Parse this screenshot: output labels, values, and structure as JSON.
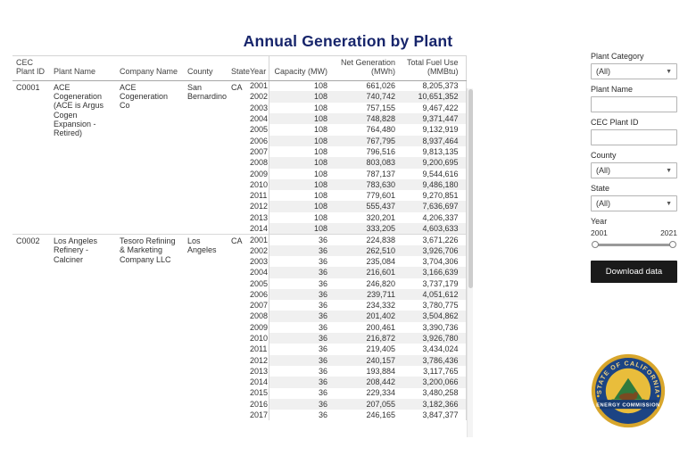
{
  "title": "Annual Generation by Plant",
  "table": {
    "headers": [
      "CEC Plant ID",
      "Plant Name",
      "Company Name",
      "County",
      "State",
      "Year",
      "Capacity (MW)",
      "Net Generation (MWh)",
      "Total Fuel Use (MMBtu)"
    ],
    "groups": [
      {
        "plant_id": "C0001",
        "plant_name": "ACE Cogeneration (ACE is Argus Cogen Expansion - Retired)",
        "company_name": "ACE Cogeneration Co",
        "county": "San Bernardino",
        "state": "CA",
        "rows": [
          {
            "year": "2001",
            "capacity": "108",
            "net_generation": "661,026",
            "total_fuel_use": "8,205,373"
          },
          {
            "year": "2002",
            "capacity": "108",
            "net_generation": "740,742",
            "total_fuel_use": "10,651,352"
          },
          {
            "year": "2003",
            "capacity": "108",
            "net_generation": "757,155",
            "total_fuel_use": "9,467,422"
          },
          {
            "year": "2004",
            "capacity": "108",
            "net_generation": "748,828",
            "total_fuel_use": "9,371,447"
          },
          {
            "year": "2005",
            "capacity": "108",
            "net_generation": "764,480",
            "total_fuel_use": "9,132,919"
          },
          {
            "year": "2006",
            "capacity": "108",
            "net_generation": "767,795",
            "total_fuel_use": "8,937,464"
          },
          {
            "year": "2007",
            "capacity": "108",
            "net_generation": "796,516",
            "total_fuel_use": "9,813,135"
          },
          {
            "year": "2008",
            "capacity": "108",
            "net_generation": "803,083",
            "total_fuel_use": "9,200,695"
          },
          {
            "year": "2009",
            "capacity": "108",
            "net_generation": "787,137",
            "total_fuel_use": "9,544,616"
          },
          {
            "year": "2010",
            "capacity": "108",
            "net_generation": "783,630",
            "total_fuel_use": "9,486,180"
          },
          {
            "year": "2011",
            "capacity": "108",
            "net_generation": "779,601",
            "total_fuel_use": "9,270,851"
          },
          {
            "year": "2012",
            "capacity": "108",
            "net_generation": "555,437",
            "total_fuel_use": "7,636,697"
          },
          {
            "year": "2013",
            "capacity": "108",
            "net_generation": "320,201",
            "total_fuel_use": "4,206,337"
          },
          {
            "year": "2014",
            "capacity": "108",
            "net_generation": "333,205",
            "total_fuel_use": "4,603,633"
          }
        ]
      },
      {
        "plant_id": "C0002",
        "plant_name": "Los Angeles Refinery - Calciner",
        "company_name": "Tesoro Refining & Marketing Company LLC",
        "county": "Los Angeles",
        "state": "CA",
        "rows": [
          {
            "year": "2001",
            "capacity": "36",
            "net_generation": "224,838",
            "total_fuel_use": "3,671,226"
          },
          {
            "year": "2002",
            "capacity": "36",
            "net_generation": "262,510",
            "total_fuel_use": "3,926,706"
          },
          {
            "year": "2003",
            "capacity": "36",
            "net_generation": "235,084",
            "total_fuel_use": "3,704,306"
          },
          {
            "year": "2004",
            "capacity": "36",
            "net_generation": "216,601",
            "total_fuel_use": "3,166,639"
          },
          {
            "year": "2005",
            "capacity": "36",
            "net_generation": "246,820",
            "total_fuel_use": "3,737,179"
          },
          {
            "year": "2006",
            "capacity": "36",
            "net_generation": "239,711",
            "total_fuel_use": "4,051,612"
          },
          {
            "year": "2007",
            "capacity": "36",
            "net_generation": "234,332",
            "total_fuel_use": "3,780,775"
          },
          {
            "year": "2008",
            "capacity": "36",
            "net_generation": "201,402",
            "total_fuel_use": "3,504,862"
          },
          {
            "year": "2009",
            "capacity": "36",
            "net_generation": "200,461",
            "total_fuel_use": "3,390,736"
          },
          {
            "year": "2010",
            "capacity": "36",
            "net_generation": "216,872",
            "total_fuel_use": "3,926,780"
          },
          {
            "year": "2011",
            "capacity": "36",
            "net_generation": "219,405",
            "total_fuel_use": "3,434,024"
          },
          {
            "year": "2012",
            "capacity": "36",
            "net_generation": "240,157",
            "total_fuel_use": "3,786,436"
          },
          {
            "year": "2013",
            "capacity": "36",
            "net_generation": "193,884",
            "total_fuel_use": "3,117,765"
          },
          {
            "year": "2014",
            "capacity": "36",
            "net_generation": "208,442",
            "total_fuel_use": "3,200,066"
          },
          {
            "year": "2015",
            "capacity": "36",
            "net_generation": "229,334",
            "total_fuel_use": "3,480,258"
          },
          {
            "year": "2016",
            "capacity": "36",
            "net_generation": "207,055",
            "total_fuel_use": "3,182,366"
          },
          {
            "year": "2017",
            "capacity": "36",
            "net_generation": "246,165",
            "total_fuel_use": "3,847,377"
          }
        ]
      }
    ]
  },
  "filters": {
    "plant_category": {
      "label": "Plant Category",
      "value": "(All)"
    },
    "plant_name": {
      "label": "Plant Name",
      "value": ""
    },
    "cec_plant_id": {
      "label": "CEC Plant ID",
      "value": ""
    },
    "county": {
      "label": "County",
      "value": "(All)"
    },
    "state": {
      "label": "State",
      "value": "(All)"
    },
    "year": {
      "label": "Year",
      "min": "2001",
      "max": "2021"
    },
    "download_button": "Download data"
  },
  "logo": {
    "top_text": "STATE OF CALIFORNIA",
    "bottom_text": "ENERGY COMMISSION"
  },
  "colors": {
    "title": "#17256b",
    "band": "#f0f0f0",
    "button": "#1a1a1a",
    "seal_gold": "#d8a62c",
    "seal_blue": "#1c4484"
  }
}
